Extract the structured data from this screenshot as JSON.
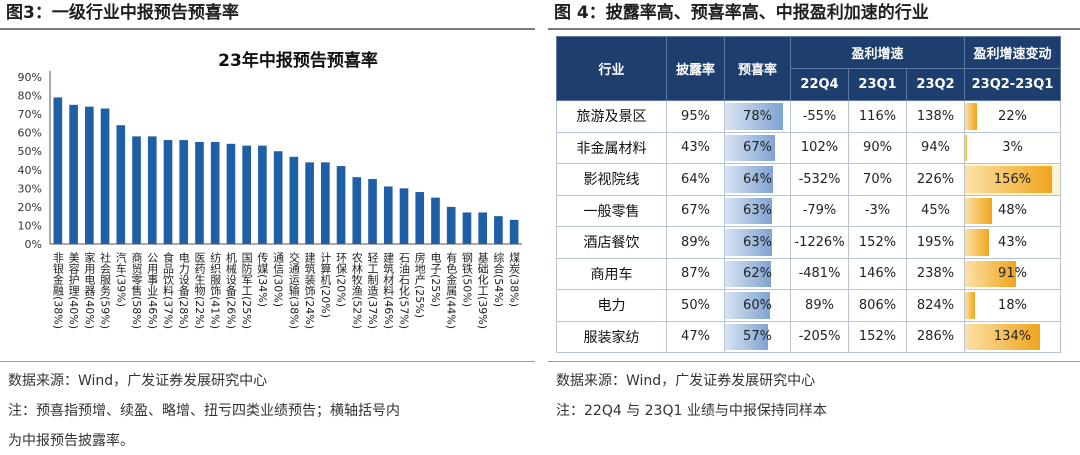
{
  "left_panel": {
    "figure_title": "图3：一级行业中报预告预喜率",
    "source": "数据来源：Wind，广发证券发展研究中心",
    "note_line1": "注：预喜指预增、续盈、略增、扭亏四类业绩预告；横轴括号内",
    "note_line2": "为中报预告披露率。"
  },
  "right_panel": {
    "figure_title": "图 4：披露率高、预喜率高、中报盈利加速的行业",
    "source": "数据来源：Wind，广发证券发展研究中心",
    "note": "注：22Q4 与 23Q1 业绩与中报保持同样本",
    "headers": {
      "industry": "行业",
      "disclosure": "披露率",
      "positive": "预喜率",
      "growth_group": "盈利增速",
      "q4": "22Q4",
      "q1": "23Q1",
      "q2": "23Q2",
      "change_group": "盈利增速变动",
      "change": "23Q2-23Q1"
    },
    "rows": [
      {
        "industry": "旅游及景区",
        "disclosure": "95%",
        "positive": "78%",
        "q4": "-55%",
        "q1": "116%",
        "q2": "138%",
        "change": "22%",
        "positive_value": 78,
        "change_value": 22,
        "highlight": false
      },
      {
        "industry": "非金属材料",
        "disclosure": "43%",
        "positive": "67%",
        "q4": "102%",
        "q1": "90%",
        "q2": "94%",
        "change": "3%",
        "positive_value": 67,
        "change_value": 3,
        "highlight": false
      },
      {
        "industry": "影视院线",
        "disclosure": "64%",
        "positive": "64%",
        "q4": "-532%",
        "q1": "70%",
        "q2": "226%",
        "change": "156%",
        "positive_value": 64,
        "change_value": 156,
        "highlight": true
      },
      {
        "industry": "一般零售",
        "disclosure": "67%",
        "positive": "63%",
        "q4": "-79%",
        "q1": "-3%",
        "q2": "45%",
        "change": "48%",
        "positive_value": 63,
        "change_value": 48,
        "highlight": false
      },
      {
        "industry": "酒店餐饮",
        "disclosure": "89%",
        "positive": "63%",
        "q4": "-1226%",
        "q1": "152%",
        "q2": "195%",
        "change": "43%",
        "positive_value": 63,
        "change_value": 43,
        "highlight": false
      },
      {
        "industry": "商用车",
        "disclosure": "87%",
        "positive": "62%",
        "q4": "-481%",
        "q1": "146%",
        "q2": "238%",
        "change": "91%",
        "positive_value": 62,
        "change_value": 91,
        "highlight": false
      },
      {
        "industry": "电力",
        "disclosure": "50%",
        "positive": "60%",
        "q4": "89%",
        "q1": "806%",
        "q2": "824%",
        "change": "18%",
        "positive_value": 60,
        "change_value": 18,
        "highlight": false
      },
      {
        "industry": "服装家纺",
        "disclosure": "47%",
        "positive": "57%",
        "q4": "-205%",
        "q1": "152%",
        "q2": "286%",
        "change": "134%",
        "positive_value": 57,
        "change_value": 134,
        "highlight": false
      }
    ],
    "colors": {
      "header": "#1e3f6d",
      "data_bar": "#7fa3d1",
      "change_bar": "#f0a51c"
    }
  },
  "chart_data": {
    "type": "bar",
    "title": "23年中报预告预喜率",
    "xlabel": "",
    "ylabel": "",
    "ylim": [
      0,
      90
    ],
    "yticks": [
      "0%",
      "10%",
      "20%",
      "30%",
      "40%",
      "50%",
      "60%",
      "70%",
      "80%",
      "90%"
    ],
    "color": "#1f5fa8",
    "categories": [
      "非银金融(38%)",
      "美容护理(40%)",
      "家用电器(40%)",
      "社会服务(59%)",
      "汽车(39%)",
      "商贸零售(58%)",
      "公用事业(46%)",
      "食品饮料(37%)",
      "电力设备(28%)",
      "医药生物(22%)",
      "纺织服饰(41%)",
      "机械设备(26%)",
      "国防军工(25%)",
      "传媒(34%)",
      "通信(30%)",
      "交通运输(38%)",
      "建筑装饰(24%)",
      "计算机(20%)",
      "环保(20%)",
      "农林牧渔(52%)",
      "轻工制造(37%)",
      "建筑材料(46%)",
      "石油石化(57%)",
      "房地产(25%)",
      "电子(25%)",
      "有色金属(44%)",
      "钢铁(50%)",
      "基础化工(39%)",
      "综合(54%)",
      "煤炭(38%)"
    ],
    "values": [
      79,
      75,
      74,
      73,
      64,
      58,
      58,
      56,
      56,
      55,
      55,
      54,
      53,
      53,
      50,
      47,
      44,
      44,
      42,
      36,
      35,
      31,
      30,
      28,
      25,
      20,
      17,
      17,
      15,
      13
    ]
  }
}
